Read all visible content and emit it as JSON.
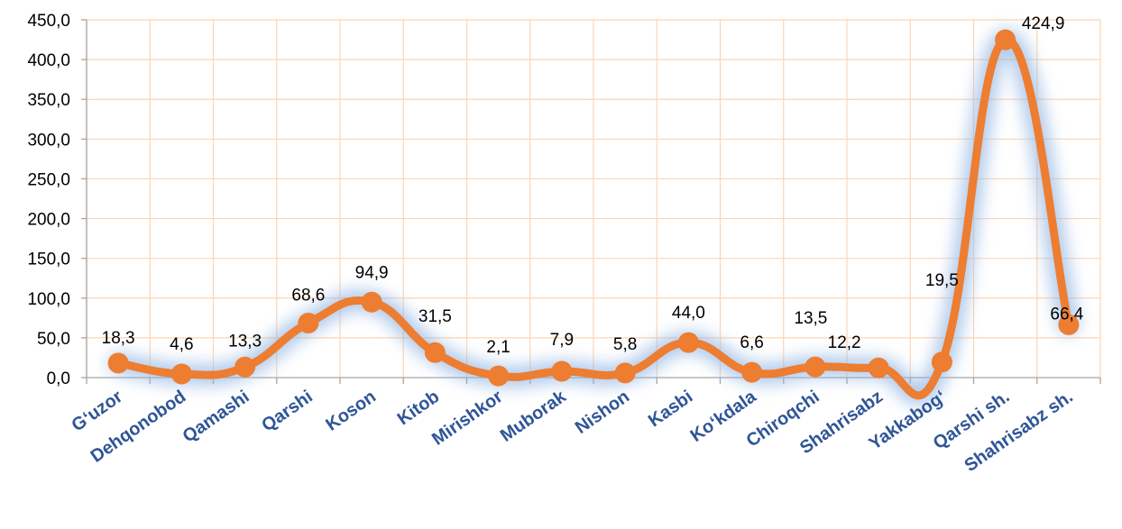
{
  "chart_data": {
    "type": "line",
    "categories": [
      "G‘uzor",
      "Dehqonobod",
      "Qamashi",
      "Qarshi",
      "Koson",
      "Kitob",
      "Mirishkor",
      "Muborak",
      "Nishon",
      "Kasbi",
      "Ko‘kdala",
      "Chiroqchi",
      "Shahrisabz",
      "Yakkabog‘",
      "Qarshi sh.",
      "Shahrisabz sh."
    ],
    "series": [
      {
        "values": [
          18.3,
          4.6,
          13.3,
          68.6,
          94.9,
          31.5,
          2.1,
          7.9,
          5.8,
          44.0,
          6.6,
          13.5,
          12.2,
          19.5,
          424.9,
          66.4
        ],
        "data_labels": [
          "18,3",
          "4,6",
          "13,3",
          "68,6",
          "94,9",
          "31,5",
          "2,1",
          "7,9",
          "5,8",
          "44,0",
          "6,6",
          "13,5",
          "12,2",
          "19,5",
          "424,9",
          "66,4"
        ]
      }
    ],
    "ylim": [
      0,
      450
    ],
    "yticks": [
      "0,0",
      "50,0",
      "100,0",
      "150,0",
      "200,0",
      "250,0",
      "300,0",
      "350,0",
      "400,0",
      "450,0"
    ],
    "title": "",
    "xlabel": "",
    "ylabel": "",
    "grid": true,
    "legend": "none",
    "colors": {
      "line": "#ed7d31",
      "marker": "#ed7d31",
      "glow": "#8fb4e3",
      "grid": "#fcd5b4",
      "axis": "#a6a6a6",
      "category_text": "#2f5597",
      "value_text": "#000000"
    }
  }
}
